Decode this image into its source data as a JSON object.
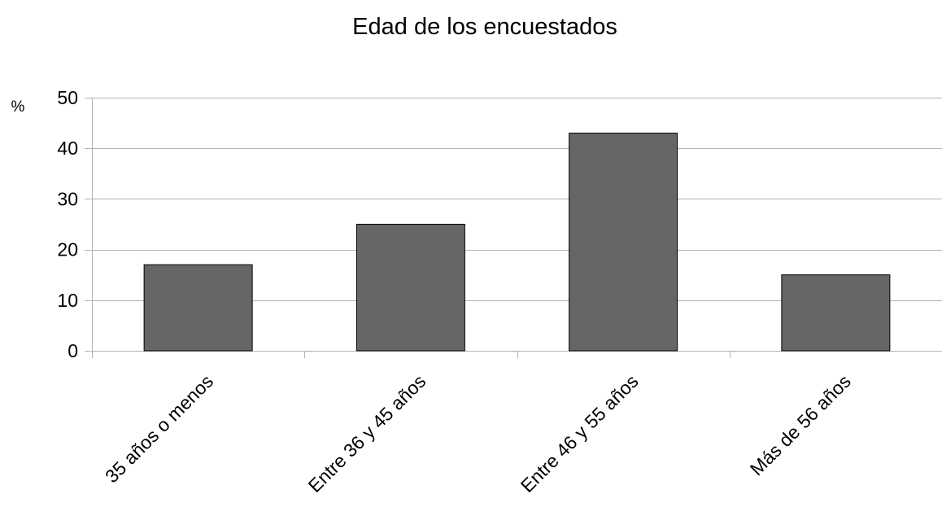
{
  "chart_data": {
    "type": "bar",
    "title": "Edad de los encuestados",
    "xlabel": "",
    "ylabel": "%",
    "categories": [
      "35 años o menos",
      "Entre 36 y 45 años",
      "Entre 46 y 55 años",
      "Más de 56 años"
    ],
    "values": [
      17,
      25,
      43,
      15
    ],
    "ylim": [
      0,
      50
    ],
    "yticks": [
      0,
      10,
      20,
      30,
      40,
      50
    ],
    "grid": true,
    "legend": "none",
    "colors": {
      "bar_fill": "#666666",
      "bar_stroke": "#000000",
      "grid": "#b3b3b3",
      "axis": "#b3b3b3"
    }
  }
}
